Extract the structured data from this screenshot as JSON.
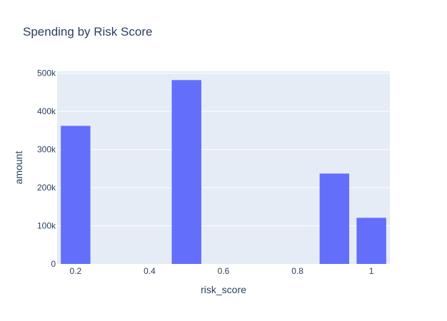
{
  "chart_data": {
    "type": "bar",
    "title": "Spending by Risk Score",
    "xlabel": "risk_score",
    "ylabel": "amount",
    "x": [
      0.2,
      0.5,
      0.9,
      1.0
    ],
    "values": [
      362000,
      482000,
      237000,
      121000
    ],
    "xlim": [
      0.15,
      1.05
    ],
    "ylim": [
      0,
      505000
    ],
    "x_ticks": [
      0.2,
      0.4,
      0.6,
      0.8,
      1.0
    ],
    "x_tick_labels": [
      "0.2",
      "0.4",
      "0.6",
      "0.8",
      "1"
    ],
    "y_ticks": [
      0,
      100000,
      200000,
      300000,
      400000,
      500000
    ],
    "y_tick_labels": [
      "0",
      "100k",
      "200k",
      "300k",
      "400k",
      "500k"
    ],
    "grid": true,
    "bar_color": "#636efa",
    "plot_background": "#e5ecf6"
  }
}
